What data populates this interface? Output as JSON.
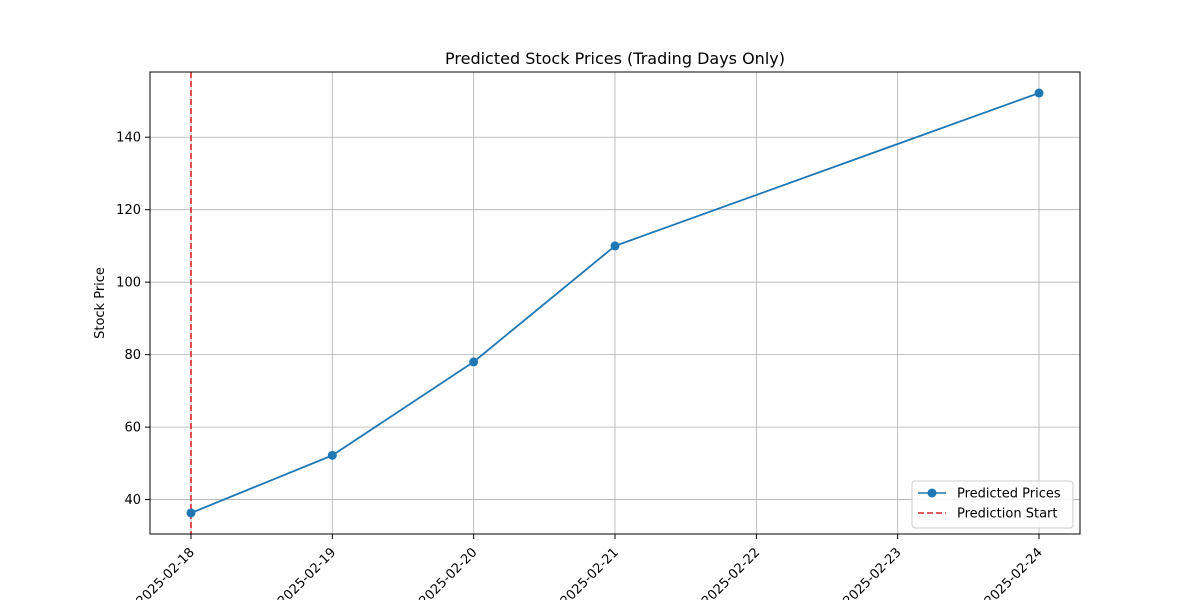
{
  "chart_data": {
    "type": "line",
    "title": "Predicted Stock Prices (Trading Days Only)",
    "xlabel": "",
    "ylabel": "Stock Price",
    "x_ticks": [
      "2025-02-18",
      "2025-02-19",
      "2025-02-20",
      "2025-02-21",
      "2025-02-22",
      "2025-02-23",
      "2025-02-24"
    ],
    "y_ticks": [
      40,
      60,
      80,
      100,
      120,
      140
    ],
    "ylim": [
      30.5,
      158
    ],
    "xlim": [
      "2025-02-17.71",
      "2025-02-24.29"
    ],
    "grid": true,
    "legend_position": "lower-right",
    "series": [
      {
        "name": "Predicted Prices",
        "color": "#1f77b4",
        "marker": "circle",
        "x": [
          "2025-02-18",
          "2025-02-19",
          "2025-02-20",
          "2025-02-21",
          "2025-02-24"
        ],
        "y": [
          36.3,
          52.2,
          78.0,
          110.0,
          152.2
        ]
      }
    ],
    "reference_lines": [
      {
        "name": "Prediction Start",
        "orientation": "vertical",
        "x": "2025-02-18",
        "color": "#d62728",
        "style": "dashed"
      }
    ]
  }
}
